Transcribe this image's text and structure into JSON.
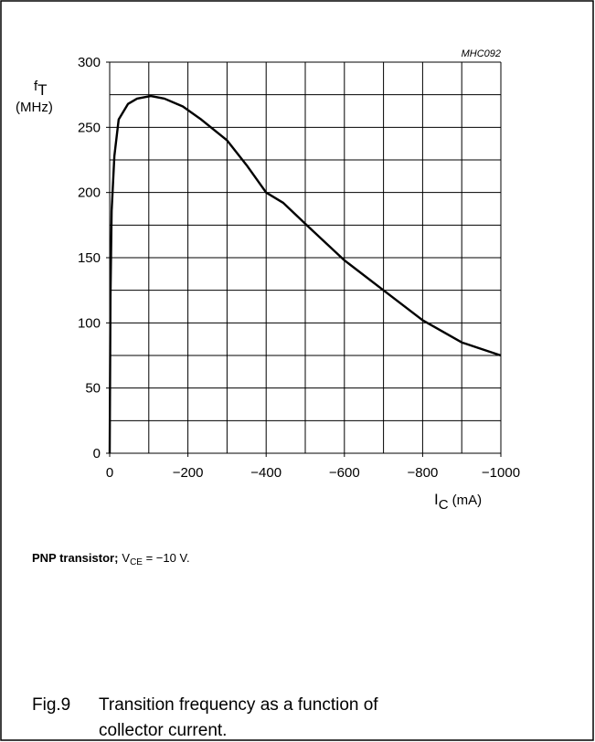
{
  "chart_data": {
    "type": "line",
    "id_label": "MHC092",
    "y_label": {
      "main": "f",
      "sub": "T",
      "unit": "(MHz)"
    },
    "x_label": {
      "main": "I",
      "sub": "C",
      "unit": "(mA)"
    },
    "x": [
      0,
      -2,
      -5,
      -12,
      -23,
      -47,
      -70,
      -105,
      -140,
      -187,
      -234,
      -300,
      -350,
      -400,
      -444,
      -500,
      -600,
      -700,
      -800,
      -900,
      -1000
    ],
    "series": [
      {
        "color": "#000000",
        "values": [
          0,
          120,
          186,
          228,
          256,
          268,
          272,
          274,
          272,
          266,
          256,
          240,
          221,
          200,
          192,
          176,
          148,
          125,
          102,
          85,
          75
        ]
      }
    ],
    "xlim": [
      0,
      -1000
    ],
    "ylim": [
      0,
      300
    ],
    "xticks": [
      0,
      {
        "value": -200,
        "label": "−200"
      },
      {
        "value": -400,
        "label": "−400"
      },
      {
        "value": -600,
        "label": "−600"
      },
      {
        "value": -800,
        "label": "−800"
      },
      {
        "value": -1000,
        "label": "−1000"
      }
    ],
    "yticks": [
      0,
      50,
      100,
      150,
      200,
      250,
      300
    ],
    "xgrid": [
      0,
      -100,
      -200,
      -300,
      -400,
      -500,
      -600,
      -700,
      -800,
      -900,
      -1000
    ],
    "ygrid": [
      0,
      25,
      50,
      75,
      100,
      125,
      150,
      175,
      200,
      225,
      250,
      275,
      300
    ],
    "grid": true
  },
  "note": {
    "bold": "PNP transistor;",
    "var": "V",
    "sub": "CE",
    "rest": " = −10 V."
  },
  "figure": {
    "number": "Fig.9",
    "caption_lines": [
      "Transition frequency as a function of",
      "collector current."
    ]
  }
}
